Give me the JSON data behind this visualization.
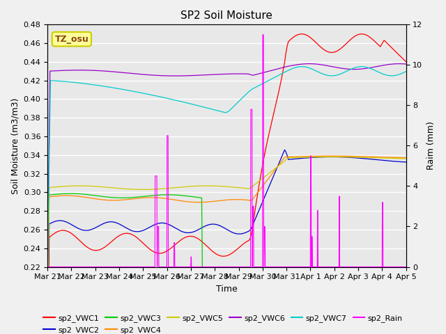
{
  "title": "SP2 Soil Moisture",
  "xlabel": "Time",
  "ylabel_left": "Soil Moisture (m3/m3)",
  "ylabel_right": "Raim (mm)",
  "ylim_left": [
    0.22,
    0.48
  ],
  "ylim_right": [
    0,
    12
  ],
  "yticks_left": [
    0.22,
    0.24,
    0.26,
    0.28,
    0.3,
    0.32,
    0.34,
    0.36,
    0.38,
    0.4,
    0.42,
    0.44,
    0.46,
    0.48
  ],
  "yticks_right": [
    0,
    2,
    4,
    6,
    8,
    10,
    12
  ],
  "colors": {
    "sp2_VWC1": "#FF0000",
    "sp2_VWC2": "#0000CC",
    "sp2_VWC3": "#00CC00",
    "sp2_VWC4": "#FF8800",
    "sp2_VWC5": "#CCCC00",
    "sp2_VWC6": "#9900CC",
    "sp2_VWC7": "#00CCCC",
    "sp2_Rain": "#FF00FF"
  },
  "legend_label": "TZ_osu",
  "legend_box_color": "#CCCC00",
  "legend_box_bg": "#FFFF99",
  "bg_color": "#E8E8E8",
  "grid_color": "#FFFFFF"
}
